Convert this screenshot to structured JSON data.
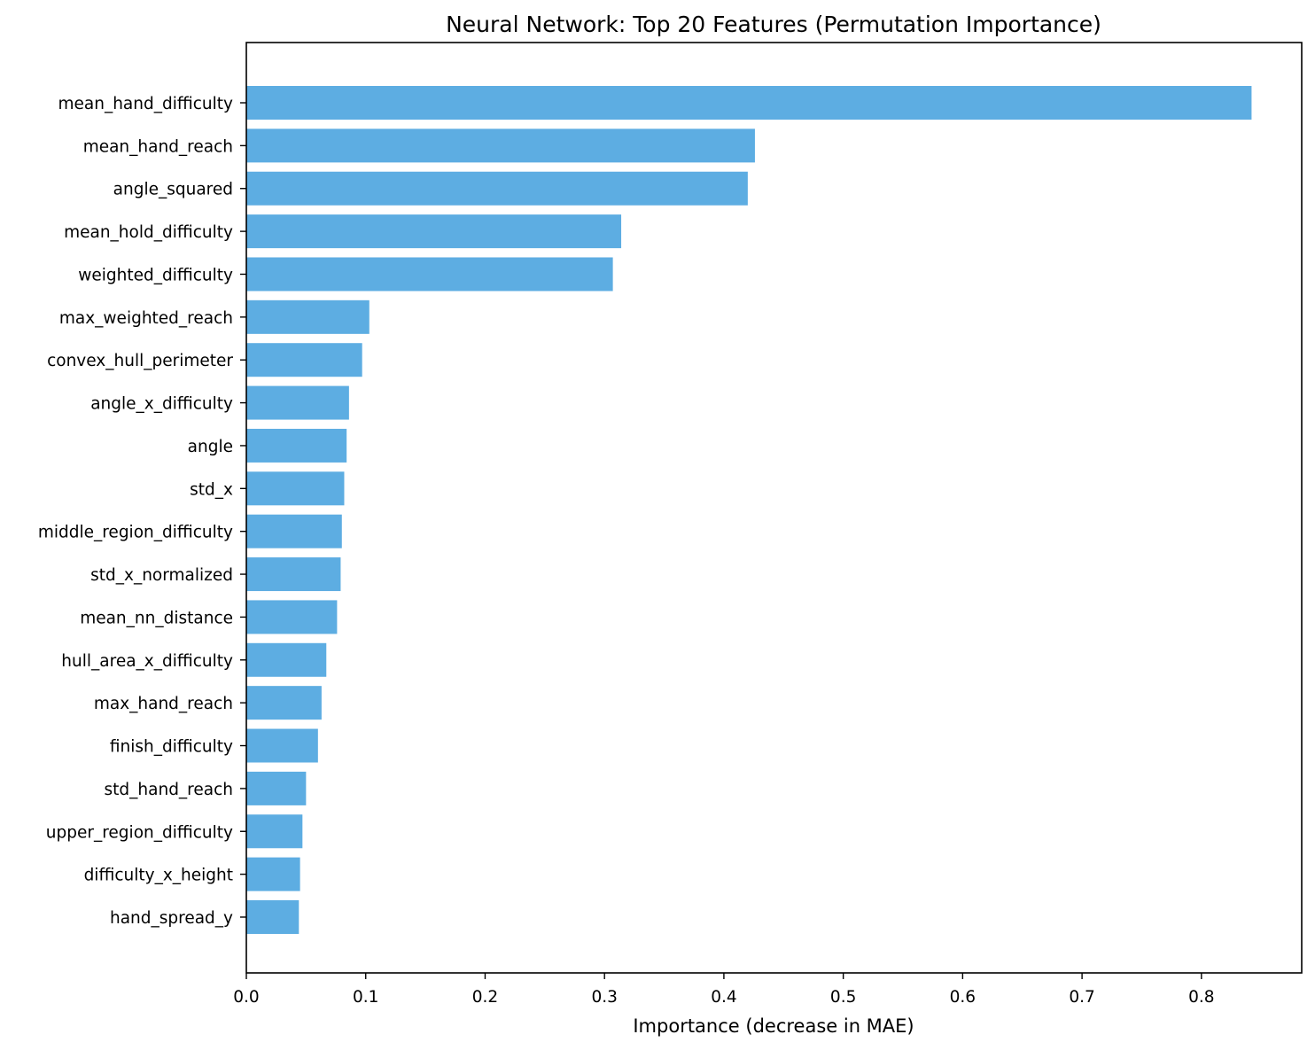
{
  "chart_data": {
    "type": "bar",
    "orientation": "horizontal",
    "title": "Neural Network: Top 20 Features (Permutation Importance)",
    "xlabel": "Importance (decrease in MAE)",
    "ylabel": "",
    "xlim": [
      0,
      0.884
    ],
    "xticks": [
      "0.0",
      "0.1",
      "0.2",
      "0.3",
      "0.4",
      "0.5",
      "0.6",
      "0.7",
      "0.8"
    ],
    "grid": false,
    "bar_color": "#5dade2",
    "categories": [
      "mean_hand_difficulty",
      "mean_hand_reach",
      "angle_squared",
      "mean_hold_difficulty",
      "weighted_difficulty",
      "max_weighted_reach",
      "convex_hull_perimeter",
      "angle_x_difficulty",
      "angle",
      "std_x",
      "middle_region_difficulty",
      "std_x_normalized",
      "mean_nn_distance",
      "hull_area_x_difficulty",
      "max_hand_reach",
      "finish_difficulty",
      "std_hand_reach",
      "upper_region_difficulty",
      "difficulty_x_height",
      "hand_spread_y"
    ],
    "values": [
      0.842,
      0.426,
      0.42,
      0.314,
      0.307,
      0.103,
      0.097,
      0.086,
      0.084,
      0.082,
      0.08,
      0.079,
      0.076,
      0.067,
      0.063,
      0.06,
      0.05,
      0.047,
      0.045,
      0.044
    ]
  }
}
